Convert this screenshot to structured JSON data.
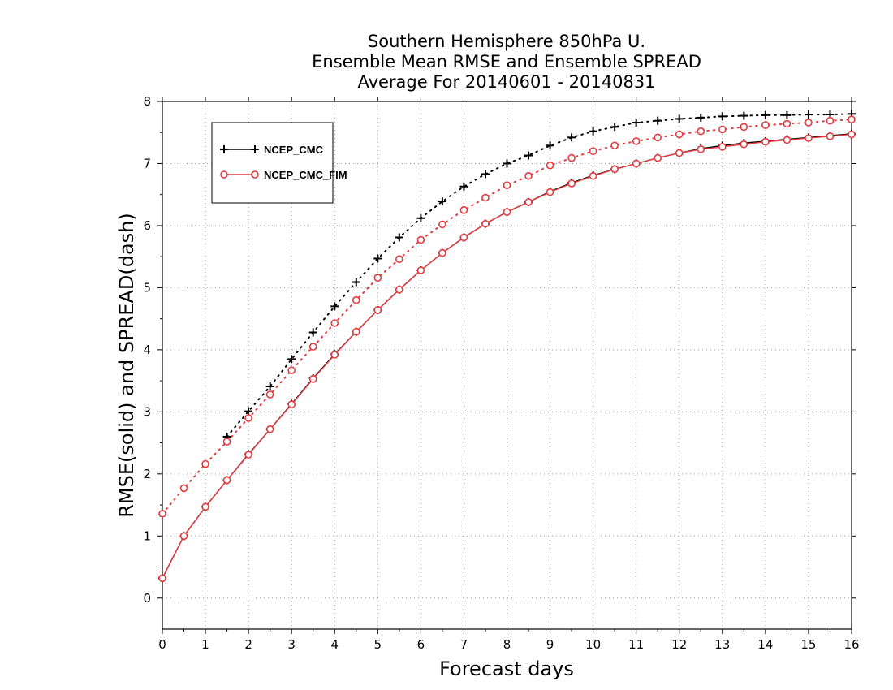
{
  "chart_data": {
    "type": "line",
    "title_lines": [
      "Southern Hemisphere 850hPa U.",
      "Ensemble Mean RMSE and Ensemble SPREAD",
      "Average For 20140601 - 20140831"
    ],
    "xlabel": "Forecast days",
    "ylabel": "RMSE(solid) and SPREAD(dash)",
    "xlim": [
      0,
      16
    ],
    "ylim": [
      -0.5,
      8
    ],
    "xticks": [
      "0",
      "1",
      "2",
      "3",
      "4",
      "5",
      "6",
      "7",
      "8",
      "9",
      "10",
      "11",
      "12",
      "13",
      "14",
      "15",
      "16"
    ],
    "yticks": [
      "0",
      "1",
      "2",
      "3",
      "4",
      "5",
      "6",
      "7",
      "8"
    ],
    "grid": true,
    "legend_position": "top-left",
    "x": [
      0,
      0.5,
      1,
      1.5,
      2,
      2.5,
      3,
      3.5,
      4,
      4.5,
      5,
      5.5,
      6,
      6.5,
      7,
      7.5,
      8,
      8.5,
      9,
      9.5,
      10,
      10.5,
      11,
      11.5,
      12,
      12.5,
      13,
      13.5,
      14,
      14.5,
      15,
      15.5,
      16
    ],
    "series": [
      {
        "name": "NCEP_CMC",
        "color": "#000000",
        "marker": "plus",
        "rmse": [
          0.32,
          1.0,
          1.47,
          1.9,
          2.32,
          2.72,
          3.13,
          3.54,
          3.93,
          4.29,
          4.64,
          4.97,
          5.28,
          5.56,
          5.81,
          6.03,
          6.22,
          6.38,
          6.55,
          6.69,
          6.81,
          6.91,
          7.0,
          7.09,
          7.17,
          7.24,
          7.29,
          7.33,
          7.36,
          7.39,
          7.42,
          7.45,
          7.48
        ],
        "spread": [
          null,
          null,
          null,
          2.6,
          3.01,
          3.41,
          3.85,
          4.28,
          4.7,
          5.09,
          5.47,
          5.81,
          6.12,
          6.39,
          6.63,
          6.83,
          7.0,
          7.13,
          7.29,
          7.42,
          7.52,
          7.59,
          7.66,
          7.69,
          7.72,
          7.74,
          7.76,
          7.77,
          7.78,
          7.78,
          7.79,
          7.79,
          7.8
        ]
      },
      {
        "name": "NCEP_CMC_FIM",
        "color": "#e8393d",
        "marker": "circle",
        "rmse": [
          0.32,
          1.0,
          1.47,
          1.9,
          2.31,
          2.72,
          3.12,
          3.53,
          3.92,
          4.29,
          4.64,
          4.97,
          5.28,
          5.56,
          5.81,
          6.03,
          6.22,
          6.38,
          6.54,
          6.68,
          6.8,
          6.91,
          7.0,
          7.09,
          7.17,
          7.23,
          7.27,
          7.31,
          7.35,
          7.38,
          7.41,
          7.44,
          7.47
        ],
        "spread": [
          1.36,
          1.77,
          2.16,
          2.52,
          2.9,
          3.28,
          3.67,
          4.05,
          4.43,
          4.8,
          5.16,
          5.46,
          5.77,
          6.02,
          6.25,
          6.45,
          6.65,
          6.8,
          6.97,
          7.09,
          7.2,
          7.29,
          7.36,
          7.42,
          7.47,
          7.52,
          7.55,
          7.59,
          7.62,
          7.64,
          7.66,
          7.69,
          7.71
        ]
      }
    ]
  }
}
